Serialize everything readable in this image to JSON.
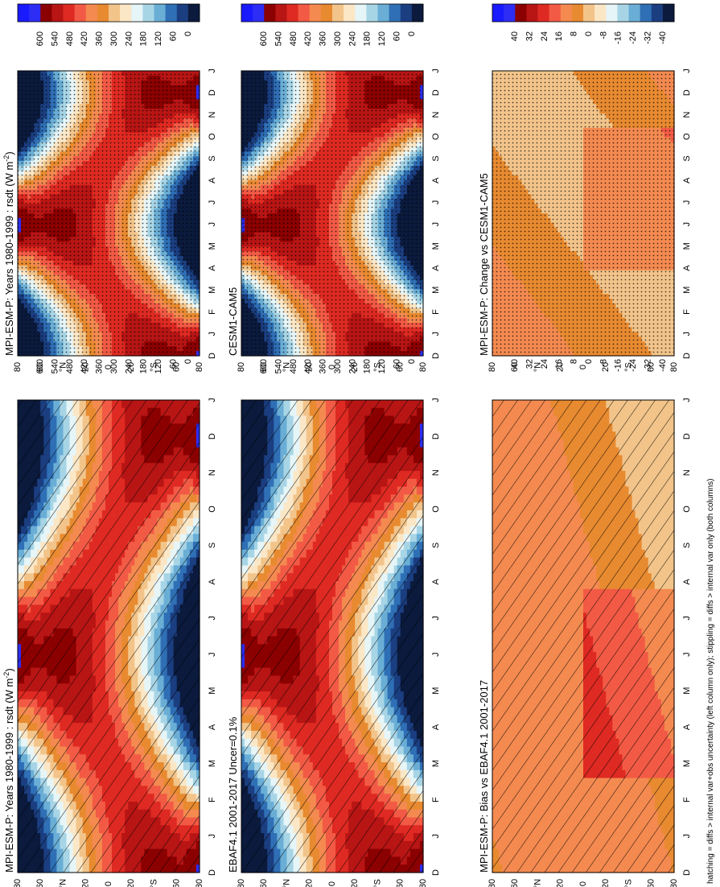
{
  "footer": "hatching = diffs > internal var+obs uncertainty (left column only); stippling = diffs > internal var only (both columns)",
  "months": [
    "D",
    "J",
    "F",
    "M",
    "A",
    "M",
    "J",
    "J",
    "A",
    "S",
    "O",
    "N",
    "D",
    "J"
  ],
  "lat_ticks": [
    "80",
    "60",
    "°N",
    "20",
    "0",
    "20",
    "°S",
    "60",
    "80"
  ],
  "colorscales": {
    "absolute": {
      "labels": [
        "600",
        "540",
        "480",
        "420",
        "360",
        "300",
        "240",
        "180",
        "120",
        "60",
        "0"
      ],
      "colors": [
        "#1a1aff",
        "#2d2df5",
        "#8b0000",
        "#b81515",
        "#de2a22",
        "#f25a45",
        "#f48a50",
        "#e88a30",
        "#f2c48a",
        "#fbe7c6",
        "#e6f5f7",
        "#a7d5e6",
        "#6aaed6",
        "#2f6fb5",
        "#1b3e80",
        "#0b1a3d"
      ]
    },
    "difference": {
      "labels": [
        "40",
        "32",
        "24",
        "16",
        "8",
        "0",
        "-8",
        "-16",
        "-24",
        "-32",
        "-40"
      ],
      "colors": [
        "#1a1aff",
        "#2d2df5",
        "#8b0000",
        "#b81515",
        "#de2a22",
        "#f25a45",
        "#f48a50",
        "#e88a30",
        "#f2c48a",
        "#fbe7c6",
        "#e6f5f7",
        "#a7d5e6",
        "#6aaed6",
        "#2f6fb5",
        "#1b3e80",
        "#0b1a3d"
      ]
    }
  },
  "panels": [
    {
      "id": "tl",
      "title": "MPI-ESM-P: Years 1980-1999 : rsdt (W m",
      "title_sup": "-2",
      "title_end": ")",
      "kind": "absolute",
      "hatch": true,
      "stipple": false
    },
    {
      "id": "tr",
      "title": "MPI-ESM-P: Years 1980-1999 : rsdt (W m",
      "title_sup": "-2",
      "title_end": ")",
      "kind": "absolute",
      "hatch": false,
      "stipple": true
    },
    {
      "id": "ml",
      "title": "EBAF4.1 2001-2017 Uncer=0.1%",
      "kind": "absolute",
      "hatch": true,
      "stipple": false
    },
    {
      "id": "mr",
      "title": "CESM1-CAM5",
      "kind": "absolute",
      "hatch": false,
      "stipple": true
    },
    {
      "id": "bl",
      "title": "MPI-ESM-P: Bias vs EBAF4.1 2001-2017",
      "kind": "difference",
      "hatch": true,
      "stipple": false
    },
    {
      "id": "br",
      "title": "MPI-ESM-P: Change vs CESM1-CAM5",
      "kind": "difference",
      "hatch": false,
      "stipple": true
    }
  ],
  "chart_data": [
    {
      "type": "heatmap",
      "title": "MPI-ESM-P: Years 1980-1999 : rsdt (W m-2)",
      "x": "month (D..J)",
      "y": "latitude (80°N..80°S)",
      "zlim": [
        0,
        600
      ],
      "legend": [
        "600",
        "540",
        "480",
        "420",
        "360",
        "300",
        "240",
        "180",
        "120",
        "60",
        "0"
      ],
      "hatching": true
    },
    {
      "type": "heatmap",
      "title": "EBAF4.1 2001-2017 Uncer=0.1%",
      "x": "month (D..J)",
      "y": "latitude (80°N..80°S)",
      "zlim": [
        0,
        600
      ],
      "hatching": true
    },
    {
      "type": "heatmap",
      "title": "MPI-ESM-P: Bias vs EBAF4.1 2001-2017",
      "zlim": [
        -40,
        40
      ],
      "legend": [
        "40",
        "32",
        "24",
        "16",
        "8",
        "0",
        "-8",
        "-16",
        "-24",
        "-32",
        "-40"
      ],
      "hatching": true
    },
    {
      "type": "heatmap",
      "title": "MPI-ESM-P: Years 1980-1999 : rsdt (W m-2)",
      "zlim": [
        0,
        600
      ],
      "stippling": true
    },
    {
      "type": "heatmap",
      "title": "CESM1-CAM5",
      "zlim": [
        0,
        600
      ],
      "stippling": true
    },
    {
      "type": "heatmap",
      "title": "MPI-ESM-P: Change vs CESM1-CAM5",
      "zlim": [
        -40,
        40
      ],
      "stippling": true
    }
  ]
}
